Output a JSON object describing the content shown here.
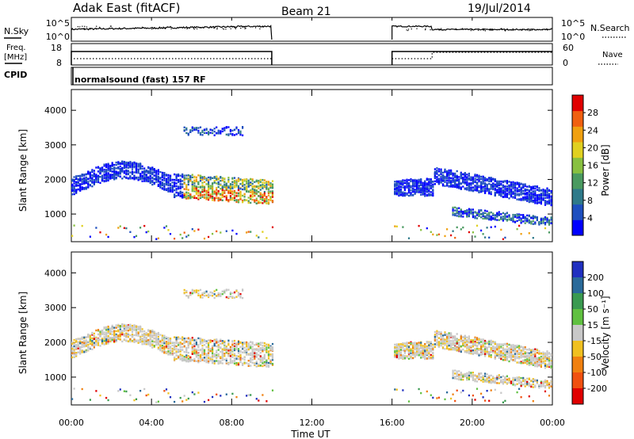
{
  "header": {
    "station": "Adak East (fitACF)",
    "beam": "Beam 21",
    "date": "19/Jul/2014"
  },
  "top_panels": {
    "nsky_label": "N.Sky",
    "nsky_ticks": [
      "10^5",
      "10^0"
    ],
    "nsearch_label": "N.Search",
    "nsearch_ticks": [
      "10^5",
      "10^0"
    ],
    "freq_label_line1": "Freq.",
    "freq_label_line2": "[MHz]",
    "freq_ticks": [
      "18",
      "8"
    ],
    "nave_label": "Nave",
    "nave_ticks": [
      "60",
      "0"
    ],
    "cpid_label": "CPID",
    "cpid_text": "normalsound (fast) 157 RF"
  },
  "chart_data": [
    {
      "type": "heatmap",
      "name": "power-panel",
      "ylabel": "Slant Range [km]",
      "xlabel": "",
      "yticks": [
        "1000",
        "2000",
        "3000",
        "4000"
      ],
      "ylim": [
        200,
        4600
      ],
      "xlim_hours": [
        0,
        24
      ],
      "colorbar": {
        "label": "Power [dB]",
        "ticks": [
          "4",
          "8",
          "12",
          "16",
          "20",
          "24",
          "28"
        ],
        "range": [
          0,
          32
        ]
      },
      "regions_hours_km": [
        {
          "t": [
            0,
            10
          ],
          "r": [
            1500,
            2500
          ],
          "comment_value": "echo band"
        },
        {
          "t": [
            16,
            24
          ],
          "r": [
            600,
            2400
          ],
          "comment_value": "echo band"
        }
      ]
    },
    {
      "type": "heatmap",
      "name": "velocity-panel",
      "ylabel": "Slant Range [km]",
      "xlabel": "Time UT",
      "yticks": [
        "1000",
        "2000",
        "3000",
        "4000"
      ],
      "ylim": [
        200,
        4600
      ],
      "xticks": [
        "00:00",
        "04:00",
        "08:00",
        "12:00",
        "16:00",
        "20:00",
        "00:00"
      ],
      "xlim_hours": [
        0,
        24
      ],
      "colorbar": {
        "label": "Velocity [m s⁻¹]",
        "ticks": [
          "200",
          "100",
          "50",
          "15",
          "-15",
          "-50",
          "-100",
          "-200"
        ],
        "range": [
          -250,
          250
        ]
      }
    }
  ],
  "colors": {
    "power_scale": [
      "#0000ff",
      "#1e4fbf",
      "#2f7a8a",
      "#4a9a60",
      "#88c040",
      "#e0d020",
      "#f0a010",
      "#f06010",
      "#e00000"
    ],
    "velocity_scale": [
      "#2030c0",
      "#2a6a9a",
      "#3a9a50",
      "#60c040",
      "#c8c8c8",
      "#f0c020",
      "#f08010",
      "#f05010",
      "#e00000"
    ]
  }
}
